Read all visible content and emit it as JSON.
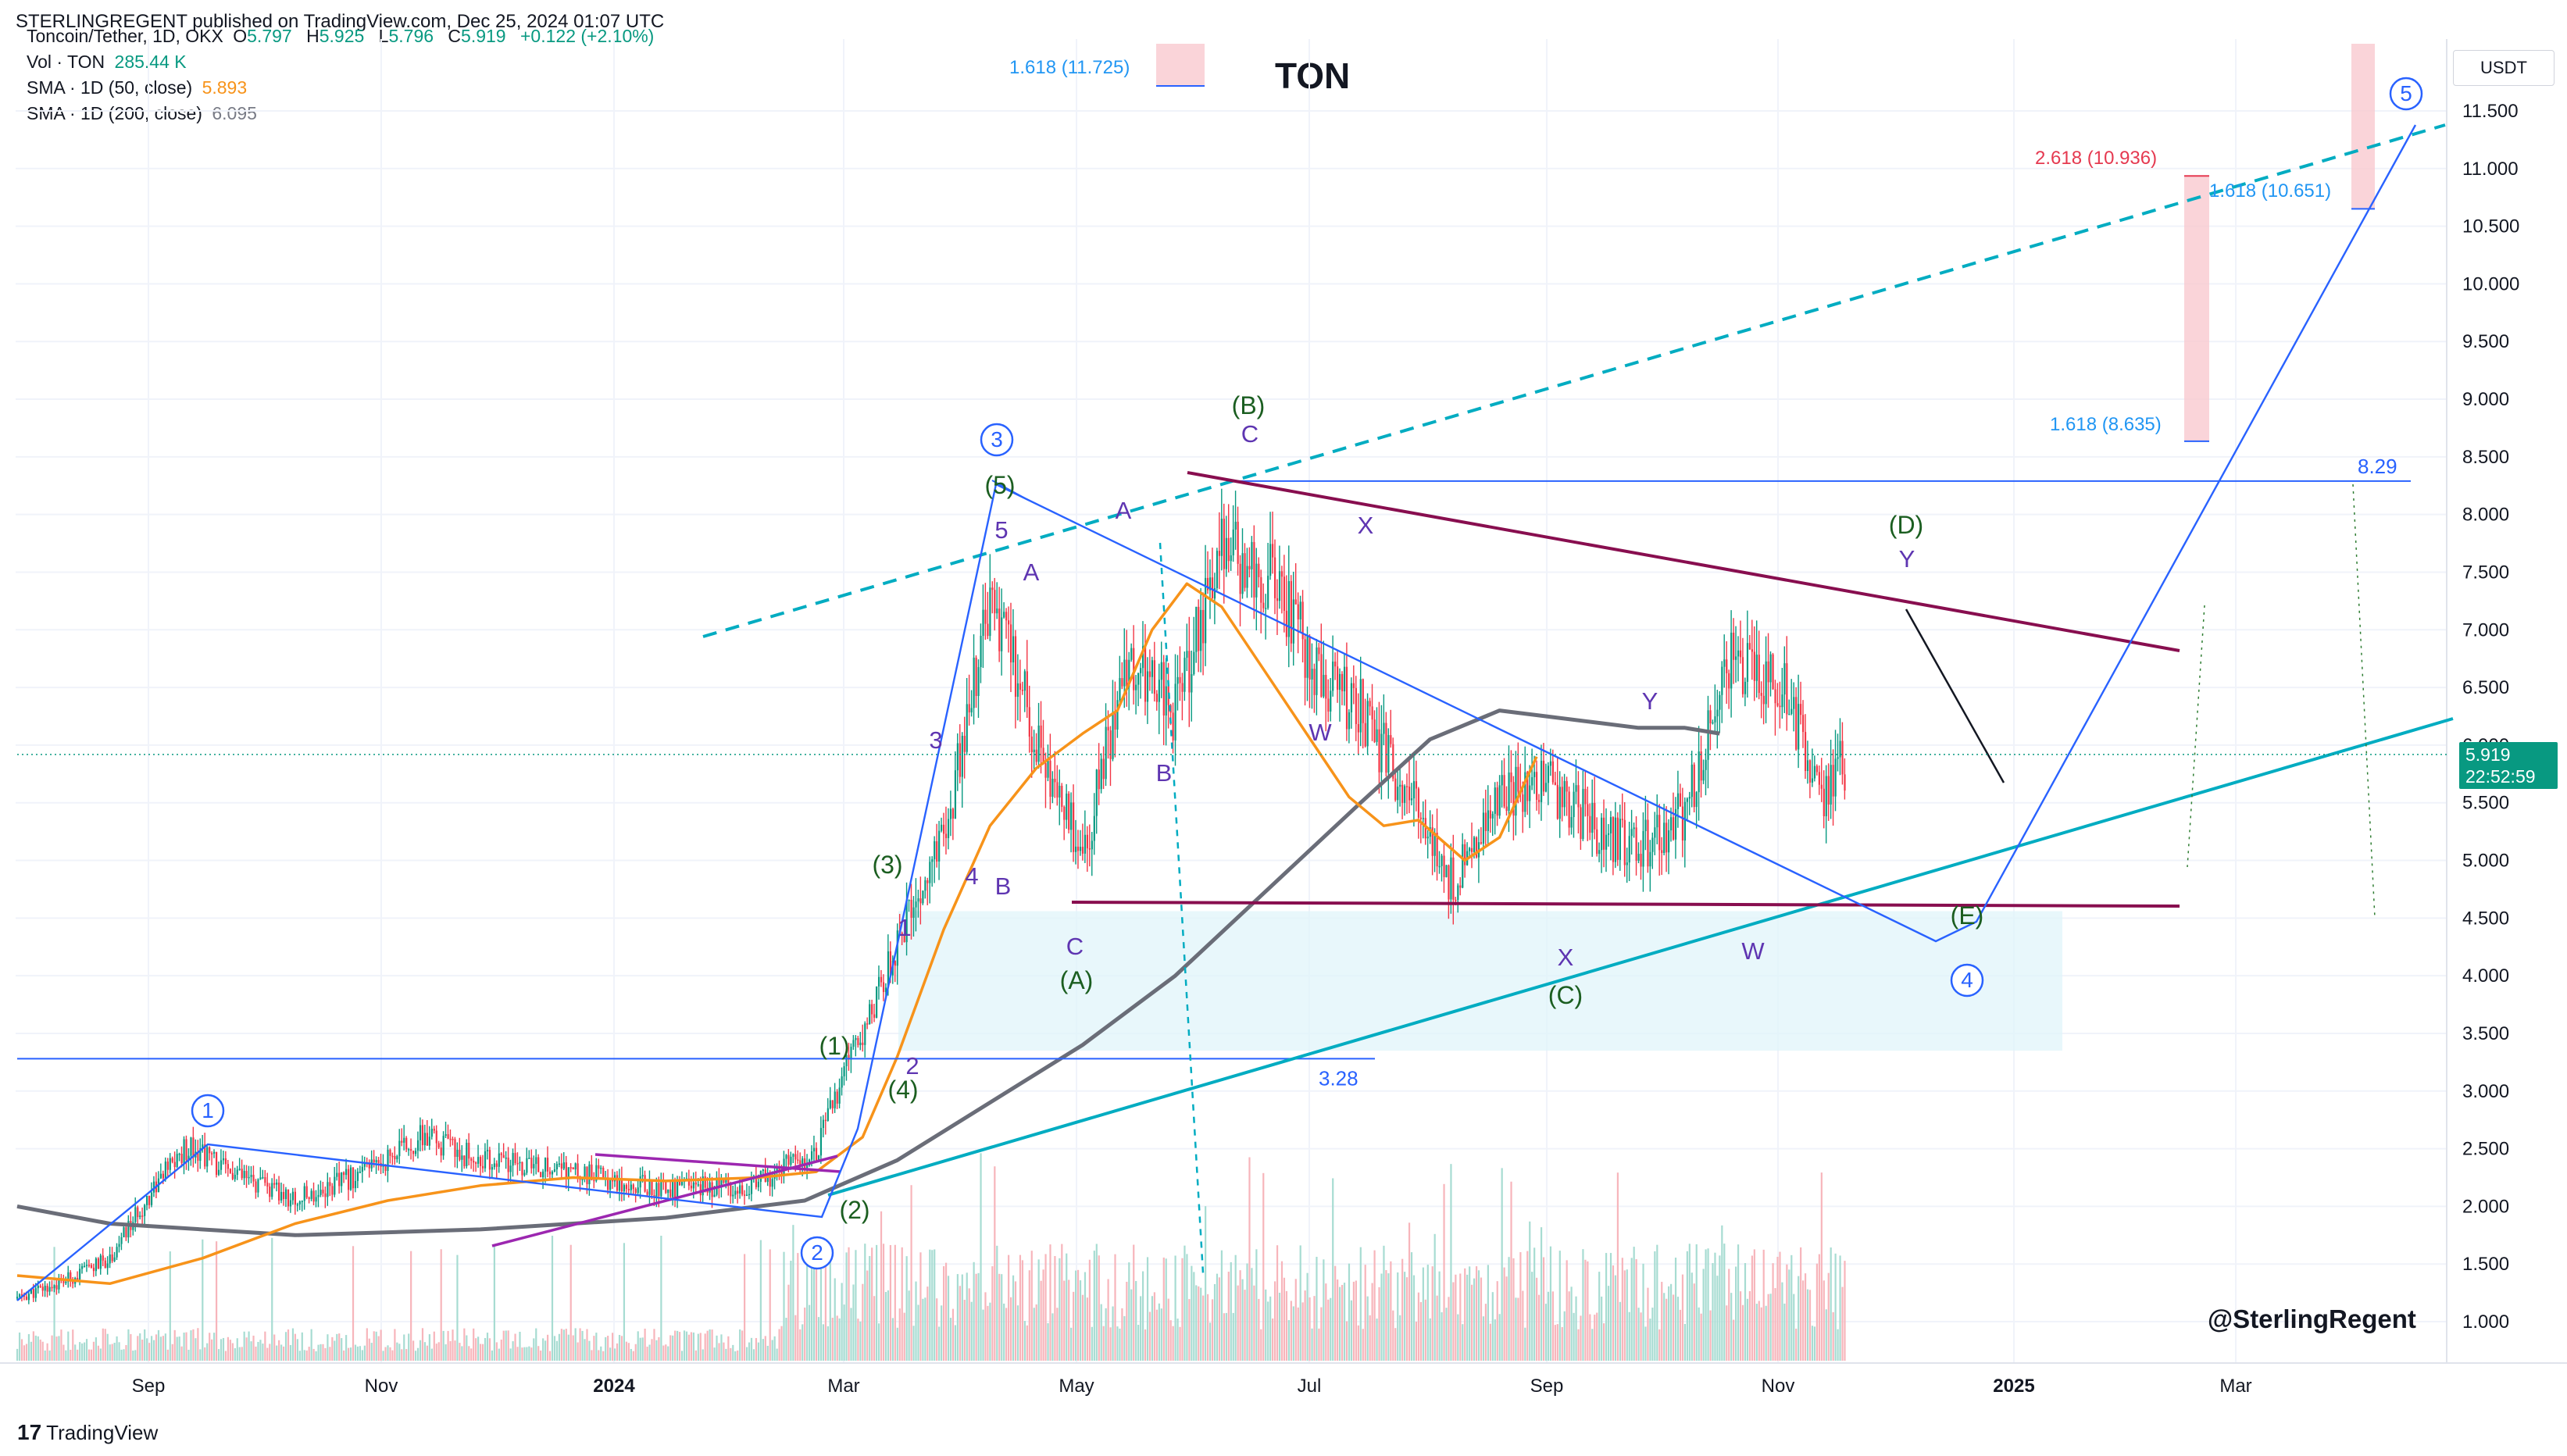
{
  "header": {
    "published_line": "STERLINGREGENT published on TradingView.com, Dec 25, 2024 01:07 UTC",
    "symbol_line": {
      "symbol": "Toncoin/Tether, 1D, OKX",
      "o_label": "O",
      "o_value": "5.797",
      "h_label": "H",
      "h_value": "5.925",
      "l_label": "L",
      "l_value": "5.796",
      "c_label": "C",
      "c_value": "5.919",
      "change": "+0.122 (+2.10%)"
    },
    "vol_line": {
      "label": "Vol · TON",
      "value": "285.44 K"
    },
    "sma50_line": {
      "label": "SMA · 1D (50, close)",
      "value": "5.893"
    },
    "sma200_line": {
      "label": "SMA · 1D (200, close)",
      "value": "6.095"
    }
  },
  "chart_title": "TON",
  "currency": "USDT",
  "price_badge": {
    "price": "5.919",
    "countdown": "22:52:59"
  },
  "author_watermark": "@SterlingRegent",
  "footer_brand": "TradingView",
  "colors": {
    "up": "#089981",
    "down": "#f23645",
    "sma50": "#f7931a",
    "sma200": "#6a6d78",
    "wave_blue": "#2962ff",
    "cyan": "#00acc1",
    "maroon": "#880e4f",
    "purple": "#9c27b0",
    "wave_green": "#1b5e20",
    "wave_violet": "#5e35b1",
    "fib_red": "#e53950"
  },
  "chart_data": {
    "type": "line",
    "ylim": [
      0.8,
      11.9
    ],
    "y_ticks": [
      "1.000",
      "1.500",
      "2.000",
      "2.500",
      "3.000",
      "3.500",
      "4.000",
      "4.500",
      "5.000",
      "5.500",
      "6.000",
      "6.500",
      "7.000",
      "7.500",
      "8.000",
      "8.500",
      "9.000",
      "9.500",
      "10.000",
      "10.500",
      "11.000",
      "11.500"
    ],
    "x_ticks": [
      "Sep",
      "Nov",
      "2024",
      "Mar",
      "May",
      "Jul",
      "Sep",
      "Nov",
      "2025",
      "Mar"
    ],
    "series": [
      {
        "name": "SMA · 1D (50, close)",
        "values": [
          [
            0,
            1.4
          ],
          [
            40,
            1.33
          ],
          [
            80,
            1.55
          ],
          [
            120,
            1.85
          ],
          [
            160,
            2.05
          ],
          [
            200,
            2.18
          ],
          [
            240,
            2.25
          ],
          [
            280,
            2.22
          ],
          [
            320,
            2.25
          ],
          [
            345,
            2.3
          ],
          [
            365,
            2.6
          ],
          [
            380,
            3.3
          ],
          [
            400,
            4.4
          ],
          [
            420,
            5.3
          ],
          [
            440,
            5.8
          ],
          [
            460,
            6.1
          ],
          [
            475,
            6.3
          ],
          [
            490,
            7.0
          ],
          [
            505,
            7.4
          ],
          [
            520,
            7.2
          ],
          [
            540,
            6.6
          ],
          [
            560,
            6.0
          ],
          [
            575,
            5.55
          ],
          [
            590,
            5.3
          ],
          [
            605,
            5.35
          ],
          [
            625,
            5.0
          ],
          [
            640,
            5.2
          ],
          [
            656,
            5.9
          ]
        ]
      },
      {
        "name": "SMA · 1D (200, close)",
        "values": [
          [
            0,
            2.0
          ],
          [
            40,
            1.85
          ],
          [
            120,
            1.75
          ],
          [
            200,
            1.8
          ],
          [
            280,
            1.9
          ],
          [
            340,
            2.05
          ],
          [
            380,
            2.4
          ],
          [
            420,
            2.9
          ],
          [
            460,
            3.4
          ],
          [
            500,
            4.0
          ],
          [
            540,
            4.75
          ],
          [
            580,
            5.5
          ],
          [
            610,
            6.05
          ],
          [
            640,
            6.3
          ],
          [
            660,
            6.25
          ],
          [
            680,
            6.2
          ],
          [
            700,
            6.15
          ],
          [
            720,
            6.15
          ],
          [
            735,
            6.1
          ]
        ]
      }
    ],
    "candles_summary": [
      [
        0,
        1.2
      ],
      [
        20,
        1.35
      ],
      [
        40,
        1.55
      ],
      [
        60,
        2.2
      ],
      [
        75,
        2.55
      ],
      [
        90,
        2.3
      ],
      [
        120,
        2.05
      ],
      [
        150,
        2.3
      ],
      [
        175,
        2.6
      ],
      [
        200,
        2.4
      ],
      [
        240,
        2.3
      ],
      [
        280,
        2.15
      ],
      [
        320,
        2.2
      ],
      [
        345,
        2.5
      ],
      [
        370,
        3.8
      ],
      [
        400,
        5.2
      ],
      [
        420,
        7.2
      ],
      [
        440,
        6.1
      ],
      [
        460,
        5.0
      ],
      [
        480,
        6.8
      ],
      [
        500,
        6.3
      ],
      [
        520,
        7.7
      ],
      [
        540,
        7.5
      ],
      [
        560,
        6.7
      ],
      [
        580,
        6.3
      ],
      [
        600,
        5.6
      ],
      [
        620,
        4.8
      ],
      [
        640,
        5.6
      ],
      [
        660,
        5.7
      ],
      [
        680,
        5.3
      ],
      [
        700,
        5.1
      ],
      [
        720,
        5.4
      ],
      [
        740,
        6.7
      ],
      [
        760,
        6.6
      ],
      [
        780,
        5.6
      ],
      [
        790,
        5.9
      ]
    ],
    "horizontal_levels": [
      {
        "label": "3.28",
        "value": 3.28
      },
      {
        "label": "8.29",
        "value": 8.29
      }
    ],
    "fib_labels": [
      {
        "label": "1.618 (11.725)",
        "value": 11.725
      },
      {
        "label": "2.618 (10.936)",
        "value": 10.936
      },
      {
        "label": "1.618 (10.651)",
        "value": 10.651
      },
      {
        "label": "1.618 (8.635)",
        "value": 8.635
      }
    ],
    "wave_labels": {
      "circled": [
        "1",
        "2",
        "3",
        "4",
        "5"
      ],
      "green": [
        "(1)",
        "(2)",
        "(3)",
        "(4)",
        "(5)",
        "(A)",
        "(B)",
        "(C)",
        "(D)",
        "(E)"
      ],
      "violet": [
        "1",
        "2",
        "3",
        "4",
        "5",
        "A",
        "B",
        "C",
        "A",
        "B",
        "C",
        "W",
        "X",
        "Y",
        "W",
        "X",
        "Y",
        "Y"
      ]
    }
  }
}
